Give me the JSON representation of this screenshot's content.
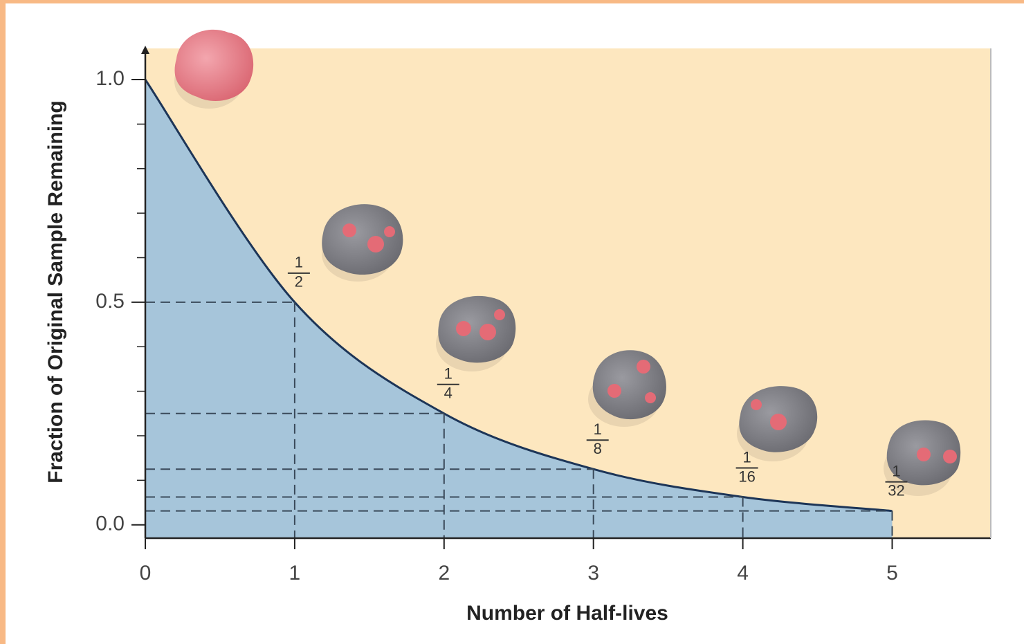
{
  "chart_data": {
    "type": "area",
    "x_label": "Number of Half-lives",
    "y_label": "Fraction of Original Sample Remaining",
    "x": [
      0,
      1,
      2,
      3,
      4,
      5
    ],
    "values": [
      1.0,
      0.5,
      0.25,
      0.125,
      0.0625,
      0.03125
    ],
    "value_labels": [
      null,
      [
        "1",
        "2"
      ],
      [
        "1",
        "4"
      ],
      [
        "1",
        "8"
      ],
      [
        "1",
        "16"
      ],
      [
        "1",
        "32"
      ]
    ],
    "xlim": [
      0,
      5.66
    ],
    "ylim": [
      -0.03,
      1.07
    ],
    "xticks": [
      0,
      1,
      2,
      3,
      4,
      5
    ],
    "yticks": [
      {
        "value": 0,
        "label": "0.0"
      },
      0.5,
      {
        "value": 1,
        "label": "1.0"
      }
    ],
    "yminorticks": [
      0.1,
      0.2,
      0.3,
      0.4,
      0.6,
      0.7,
      0.8,
      0.9
    ],
    "background_color": "#fde7bf",
    "fill_color": "#a6c5da",
    "line_color": "#1d3557",
    "guides": true
  }
}
